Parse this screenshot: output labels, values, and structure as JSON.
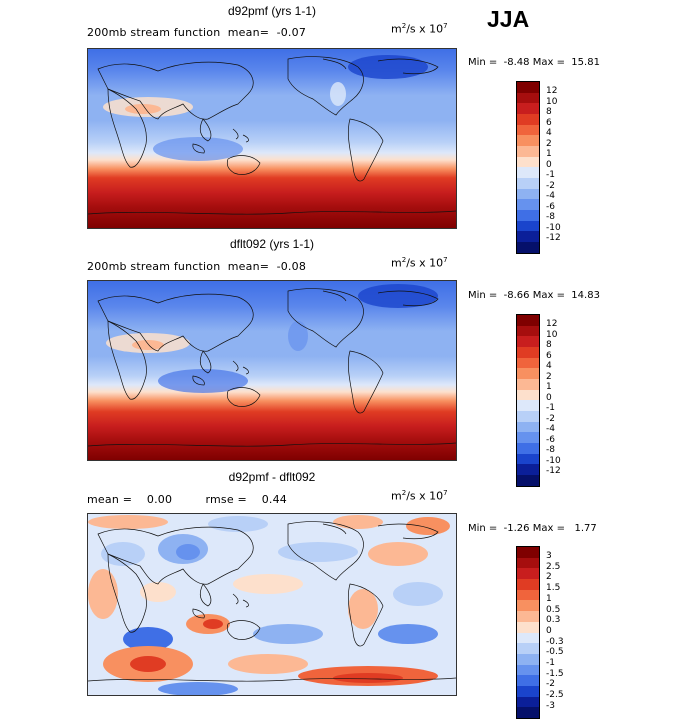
{
  "season": "JJA",
  "panels": [
    {
      "title": "d92pmf (yrs 1-1)",
      "subtitle": "200mb stream function  mean=  -0.07",
      "units_base": "m",
      "units_sup1": "2",
      "units_mid": "/s x 10",
      "units_sup2": "7",
      "minmax": "Min =  -8.48 Max =  15.81",
      "levels": [
        "12",
        "10",
        "8",
        "6",
        "4",
        "2",
        "1",
        "0",
        "-1",
        "-2",
        "-4",
        "-6",
        "-8",
        "-10",
        "-12"
      ],
      "colors": [
        "#7f0000",
        "#a60e0e",
        "#c81e1e",
        "#e03c23",
        "#f0643c",
        "#f89060",
        "#fcb894",
        "#fde0cc",
        "#dde8fa",
        "#b8d0f7",
        "#8eb2f2",
        "#6692ee",
        "#3f6fe6",
        "#1a44cc",
        "#0b1f99",
        "#05106a"
      ]
    },
    {
      "title": "dflt092 (yrs 1-1)",
      "subtitle": "200mb stream function  mean=  -0.08",
      "units_base": "m",
      "units_sup1": "2",
      "units_mid": "/s x 10",
      "units_sup2": "7",
      "minmax": "Min =  -8.66 Max =  14.83",
      "levels": [
        "12",
        "10",
        "8",
        "6",
        "4",
        "2",
        "1",
        "0",
        "-1",
        "-2",
        "-4",
        "-6",
        "-8",
        "-10",
        "-12"
      ],
      "colors": [
        "#7f0000",
        "#a60e0e",
        "#c81e1e",
        "#e03c23",
        "#f0643c",
        "#f89060",
        "#fcb894",
        "#fde0cc",
        "#dde8fa",
        "#b8d0f7",
        "#8eb2f2",
        "#6692ee",
        "#3f6fe6",
        "#1a44cc",
        "#0b1f99",
        "#05106a"
      ]
    },
    {
      "title": "d92pmf - dflt092",
      "subtitle": "mean =    0.00         rmse =    0.44",
      "units_base": "m",
      "units_sup1": "2",
      "units_mid": "/s x 10",
      "units_sup2": "7",
      "minmax": "Min =  -1.26 Max =   1.77",
      "levels": [
        "3",
        "2.5",
        "2",
        "1.5",
        "1",
        "0.5",
        "0.3",
        "0",
        "-0.3",
        "-0.5",
        "-1",
        "-1.5",
        "-2",
        "-2.5",
        "-3"
      ],
      "colors": [
        "#7f0000",
        "#a60e0e",
        "#c81e1e",
        "#e03c23",
        "#f0643c",
        "#f89060",
        "#fcb894",
        "#fde0cc",
        "#dde8fa",
        "#b8d0f7",
        "#8eb2f2",
        "#6692ee",
        "#3f6fe6",
        "#1a44cc",
        "#0b1f99",
        "#05106a"
      ]
    }
  ]
}
